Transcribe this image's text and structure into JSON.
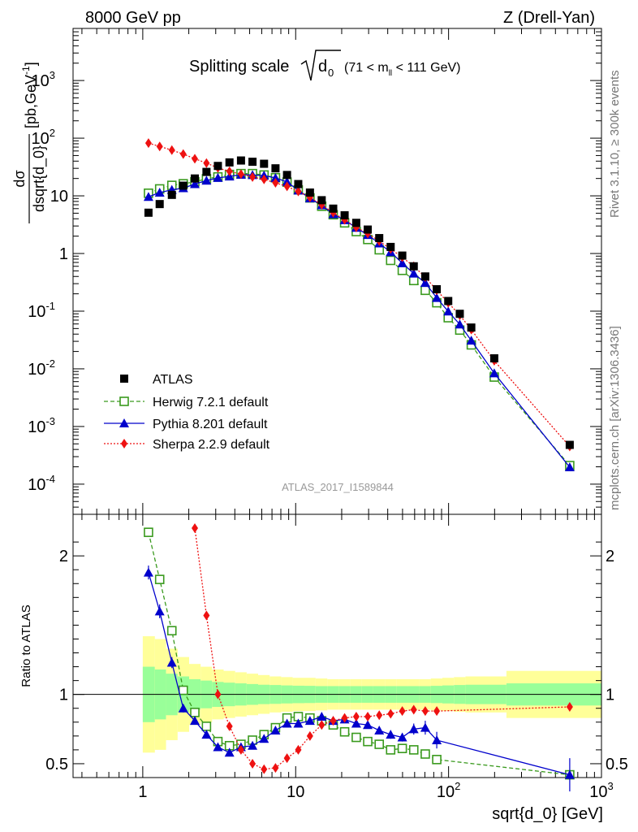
{
  "header": {
    "left": "8000 GeV pp",
    "right": "Z (Drell-Yan)"
  },
  "side_texts": {
    "rivet": "Rivet 3.1.10, ≥ 300k events",
    "mcplots": "mcplots.cern.ch [arXiv:1306.3436]"
  },
  "watermark": "ATLAS_2017_I1589844",
  "chart_data": [
    {
      "type": "scatter",
      "panel": "main",
      "title": "Splitting scale",
      "title_sqrt": "d",
      "title_sqrt_sub": "0",
      "title_range": "(71 < m",
      "title_range_sub": "ll",
      "title_range_end": " < 111 GeV)",
      "ylabel_num": "dσ",
      "ylabel_den": "dsqrt{d_0}",
      "ylabel_unit": "[pb,GeV",
      "ylabel_unit_sup": "-1",
      "ylabel_unit_end": "]",
      "xscale": "log",
      "yscale": "log",
      "xlim": [
        0.35,
        1000
      ],
      "ylim": [
        3e-05,
        8000
      ],
      "y_ticks": [
        {
          "v": 0.0001,
          "base": "10",
          "exp": "-4"
        },
        {
          "v": 0.001,
          "base": "10",
          "exp": "-3"
        },
        {
          "v": 0.01,
          "base": "10",
          "exp": "-2"
        },
        {
          "v": 0.1,
          "base": "10",
          "exp": "-1"
        },
        {
          "v": 1,
          "base": "1",
          "exp": ""
        },
        {
          "v": 10,
          "base": "10",
          "exp": ""
        },
        {
          "v": 100,
          "base": "10",
          "exp": "2"
        },
        {
          "v": 1000,
          "base": "10",
          "exp": "3"
        }
      ],
      "legend_position": "lower-left",
      "series": [
        {
          "name": "ATLAS",
          "color": "#000000",
          "marker": "square-filled",
          "x": [
            1.09,
            1.29,
            1.55,
            1.84,
            2.19,
            2.61,
            3.1,
            3.69,
            4.39,
            5.22,
            6.21,
            7.38,
            8.78,
            10.4,
            12.4,
            14.8,
            17.6,
            20.9,
            24.9,
            29.6,
            35.2,
            41.8,
            49.8,
            59.2,
            70.4,
            83.7,
            99.5,
            118.4,
            140.8,
            199,
            620
          ],
          "y": [
            5.1,
            7.2,
            10.4,
            15,
            20,
            26,
            33,
            38,
            41,
            39,
            36,
            30,
            23,
            16,
            11.4,
            8.4,
            6,
            4.6,
            3.4,
            2.6,
            1.85,
            1.3,
            0.92,
            0.6,
            0.4,
            0.24,
            0.15,
            0.09,
            0.052,
            0.0152,
            0.00048
          ]
        },
        {
          "name": "Herwig 7.2.1 default",
          "color": "#3a9a1e",
          "marker": "square-open",
          "line": "dashed",
          "x": [
            1.09,
            1.29,
            1.55,
            1.84,
            2.19,
            2.61,
            3.1,
            3.69,
            4.39,
            5.22,
            6.21,
            7.38,
            8.78,
            10.4,
            12.4,
            14.8,
            17.6,
            20.9,
            24.9,
            29.6,
            35.2,
            41.8,
            49.8,
            59.2,
            70.4,
            83.7,
            99.5,
            118.4,
            140.8,
            199,
            620
          ],
          "y": [
            11.1,
            13.2,
            15.2,
            16.2,
            17.5,
            19.8,
            21.3,
            23.5,
            24.3,
            24.3,
            23,
            20.6,
            17.3,
            12.7,
            9.2,
            6.6,
            4.7,
            3.4,
            2.4,
            1.75,
            1.16,
            0.76,
            0.51,
            0.34,
            0.23,
            0.14,
            0.077,
            0.047,
            0.026,
            0.0072,
            0.00021
          ]
        },
        {
          "name": "Pythia 8.201 default",
          "color": "#0000cc",
          "marker": "triangle-filled",
          "line": "solid",
          "x": [
            1.09,
            1.29,
            1.55,
            1.84,
            2.19,
            2.61,
            3.1,
            3.69,
            4.39,
            5.22,
            6.21,
            7.38,
            8.78,
            10.4,
            12.4,
            14.8,
            17.6,
            20.9,
            24.9,
            29.6,
            35.2,
            41.8,
            49.8,
            59.2,
            70.4,
            83.7,
            99.5,
            118.4,
            140.8,
            199,
            620
          ],
          "y": [
            9.6,
            11.4,
            12.7,
            13.6,
            16,
            18.4,
            20.5,
            21.7,
            23.3,
            23,
            22.5,
            20.4,
            17.5,
            12.4,
            9.1,
            6.9,
            4.8,
            3.8,
            2.8,
            2.1,
            1.5,
            1.06,
            0.68,
            0.45,
            0.31,
            0.17,
            0.099,
            0.059,
            0.031,
            0.0084,
            0.000197
          ]
        },
        {
          "name": "Sherpa 2.2.9 default",
          "color": "#ee1111",
          "marker": "diamond-filled",
          "line": "dotted",
          "x": [
            1.09,
            1.29,
            1.55,
            1.84,
            2.19,
            2.61,
            3.1,
            3.69,
            4.39,
            5.22,
            6.21,
            7.38,
            8.78,
            10.4,
            12.4,
            14.8,
            17.6,
            20.9,
            24.9,
            29.6,
            35.2,
            41.8,
            49.8,
            59.2,
            70.4,
            83.7,
            99.5,
            118.4,
            140.8,
            199,
            620
          ],
          "y": [
            82,
            72,
            62,
            53,
            44,
            37,
            30.5,
            26.6,
            23.8,
            21.2,
            19.3,
            16.8,
            14.6,
            11.9,
            9.4,
            7,
            5.1,
            3.84,
            2.84,
            2.22,
            1.64,
            1.2,
            0.86,
            0.6,
            0.39,
            0.23,
            0.14,
            0.085,
            0.048,
            0.0138,
            0.00045
          ]
        }
      ]
    },
    {
      "type": "scatter",
      "panel": "ratio",
      "ylabel": "Ratio to ATLAS",
      "xlabel": "sqrt{d_0} [GeV]",
      "xscale": "log",
      "xlim": [
        0.35,
        1000
      ],
      "ylim": [
        0.4,
        2.3
      ],
      "y_ticks": [
        {
          "v": 0.5,
          "label": "0.5"
        },
        {
          "v": 1,
          "label": "1"
        },
        {
          "v": 2,
          "label": "2"
        }
      ],
      "x_ticks": [
        {
          "v": 1,
          "base": "1",
          "exp": ""
        },
        {
          "v": 10,
          "base": "10",
          "exp": ""
        },
        {
          "v": 100,
          "base": "10",
          "exp": "2"
        },
        {
          "v": 1000,
          "base": "10",
          "exp": "3"
        }
      ],
      "bands": {
        "edges": [
          1,
          1.2,
          1.42,
          1.69,
          2.01,
          2.39,
          2.84,
          3.38,
          4.02,
          4.78,
          5.68,
          6.76,
          8.04,
          9.56,
          11.4,
          13.5,
          16.1,
          19.1,
          22.8,
          27.1,
          32.2,
          38.3,
          45.5,
          54.2,
          64.4,
          76.6,
          91.1,
          108.4,
          128.9,
          239,
          1000
        ],
        "total_err": [
          0.42,
          0.4,
          0.33,
          0.27,
          0.22,
          0.2,
          0.18,
          0.17,
          0.16,
          0.15,
          0.14,
          0.13,
          0.125,
          0.12,
          0.12,
          0.115,
          0.11,
          0.11,
          0.11,
          0.11,
          0.11,
          0.11,
          0.11,
          0.11,
          0.11,
          0.115,
          0.12,
          0.125,
          0.13,
          0.17
        ],
        "stat_err": [
          0.2,
          0.18,
          0.15,
          0.13,
          0.11,
          0.1,
          0.09,
          0.085,
          0.08,
          0.075,
          0.07,
          0.068,
          0.065,
          0.063,
          0.062,
          0.06,
          0.06,
          0.06,
          0.06,
          0.06,
          0.06,
          0.06,
          0.06,
          0.06,
          0.06,
          0.062,
          0.065,
          0.068,
          0.07,
          0.08
        ],
        "total_color": "#ffff99",
        "stat_color": "#99ff99"
      },
      "series": [
        {
          "name": "Herwig 7.2.1 default",
          "color": "#3a9a1e",
          "marker": "square-open",
          "line": "dashed",
          "x": [
            1.09,
            1.29,
            1.55,
            1.84,
            2.19,
            2.61,
            3.1,
            3.69,
            4.39,
            5.22,
            6.21,
            7.38,
            8.78,
            10.4,
            12.4,
            14.8,
            17.6,
            20.9,
            24.9,
            29.6,
            35.2,
            41.8,
            49.8,
            59.2,
            70.4,
            83.7,
            620
          ],
          "y": [
            2.17,
            1.83,
            1.46,
            1.03,
            0.87,
            0.77,
            0.66,
            0.63,
            0.64,
            0.67,
            0.71,
            0.76,
            0.83,
            0.84,
            0.83,
            0.81,
            0.78,
            0.73,
            0.69,
            0.66,
            0.64,
            0.6,
            0.61,
            0.6,
            0.57,
            0.53,
            0.42
          ],
          "err": [
            0,
            0,
            0,
            0,
            0,
            0,
            0,
            0,
            0,
            0,
            0,
            0,
            0,
            0,
            0,
            0,
            0,
            0,
            0,
            0,
            0,
            0,
            0,
            0,
            0,
            0,
            0
          ]
        },
        {
          "name": "Pythia 8.201 default",
          "color": "#0000cc",
          "marker": "triangle-filled",
          "line": "solid",
          "x": [
            1.09,
            1.29,
            1.55,
            1.84,
            2.19,
            2.61,
            3.1,
            3.69,
            4.39,
            5.22,
            6.21,
            7.38,
            8.78,
            10.4,
            12.4,
            14.8,
            17.6,
            20.9,
            24.9,
            29.6,
            35.2,
            41.8,
            49.8,
            59.2,
            70.4,
            83.7,
            620
          ],
          "y": [
            1.88,
            1.6,
            1.23,
            0.9,
            0.81,
            0.71,
            0.62,
            0.58,
            0.62,
            0.63,
            0.68,
            0.74,
            0.79,
            0.79,
            0.81,
            0.84,
            0.81,
            0.82,
            0.79,
            0.78,
            0.74,
            0.71,
            0.69,
            0.75,
            0.76,
            0.67,
            0.42
          ],
          "err": [
            0.05,
            0.05,
            0.04,
            0.03,
            0.02,
            0.02,
            0.02,
            0.02,
            0.02,
            0.02,
            0.02,
            0.02,
            0.02,
            0.02,
            0.02,
            0.02,
            0.02,
            0.02,
            0.02,
            0.02,
            0.02,
            0.03,
            0.03,
            0.04,
            0.05,
            0.06,
            0.12
          ]
        },
        {
          "name": "Sherpa 2.2.9 default",
          "color": "#ee1111",
          "marker": "diamond-filled",
          "line": "dotted",
          "x": [
            2.19,
            2.61,
            3.1,
            3.69,
            4.39,
            5.22,
            6.21,
            7.38,
            8.78,
            10.4,
            12.4,
            14.8,
            17.6,
            20.9,
            24.9,
            29.6,
            35.2,
            41.8,
            49.8,
            59.2,
            70.4,
            83.7,
            620
          ],
          "y": [
            2.2,
            1.57,
            1.0,
            0.77,
            0.6,
            0.5,
            0.46,
            0.47,
            0.54,
            0.6,
            0.7,
            0.78,
            0.81,
            0.83,
            0.84,
            0.84,
            0.85,
            0.86,
            0.88,
            0.89,
            0.88,
            0.88,
            0.91
          ],
          "err": [
            0,
            0,
            0,
            0,
            0,
            0,
            0,
            0,
            0,
            0,
            0,
            0,
            0,
            0,
            0,
            0,
            0,
            0,
            0,
            0,
            0,
            0,
            0.03
          ]
        }
      ]
    }
  ]
}
